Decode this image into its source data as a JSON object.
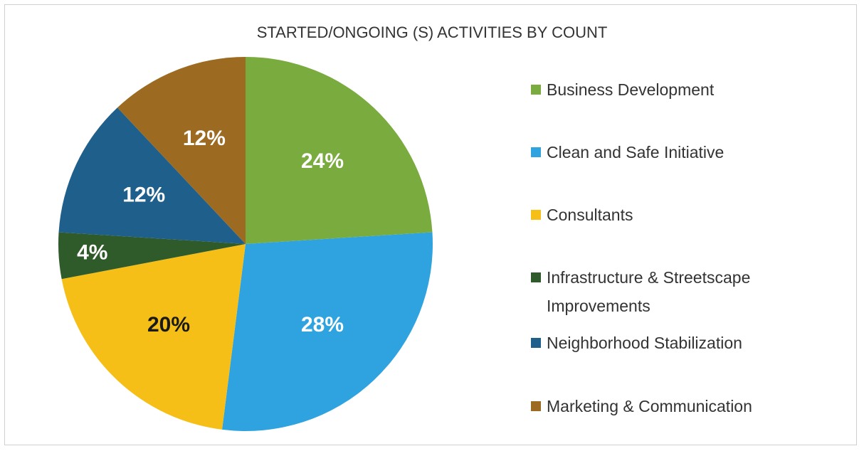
{
  "chart_data": {
    "type": "pie",
    "title": "STARTED/ONGOING (S) ACTIVITIES BY COUNT",
    "categories": [
      "Business Development",
      "Clean and Safe Initiative",
      "Consultants",
      "Infrastructure & Streetscape Improvements",
      "Neighborhood Stabilization",
      "Marketing & Communication"
    ],
    "values": [
      24,
      28,
      20,
      4,
      12,
      12
    ],
    "value_labels": [
      "24%",
      "28%",
      "20%",
      "4%",
      "12%",
      "12%"
    ],
    "colors": [
      "#7aab3f",
      "#2fa3e0",
      "#f5bf17",
      "#2f5a2a",
      "#1f5f8b",
      "#9c6b21"
    ],
    "label_colors": [
      "#ffffff",
      "#ffffff",
      "#1a1a1a",
      "#ffffff",
      "#ffffff",
      "#ffffff"
    ],
    "legend": "right"
  }
}
